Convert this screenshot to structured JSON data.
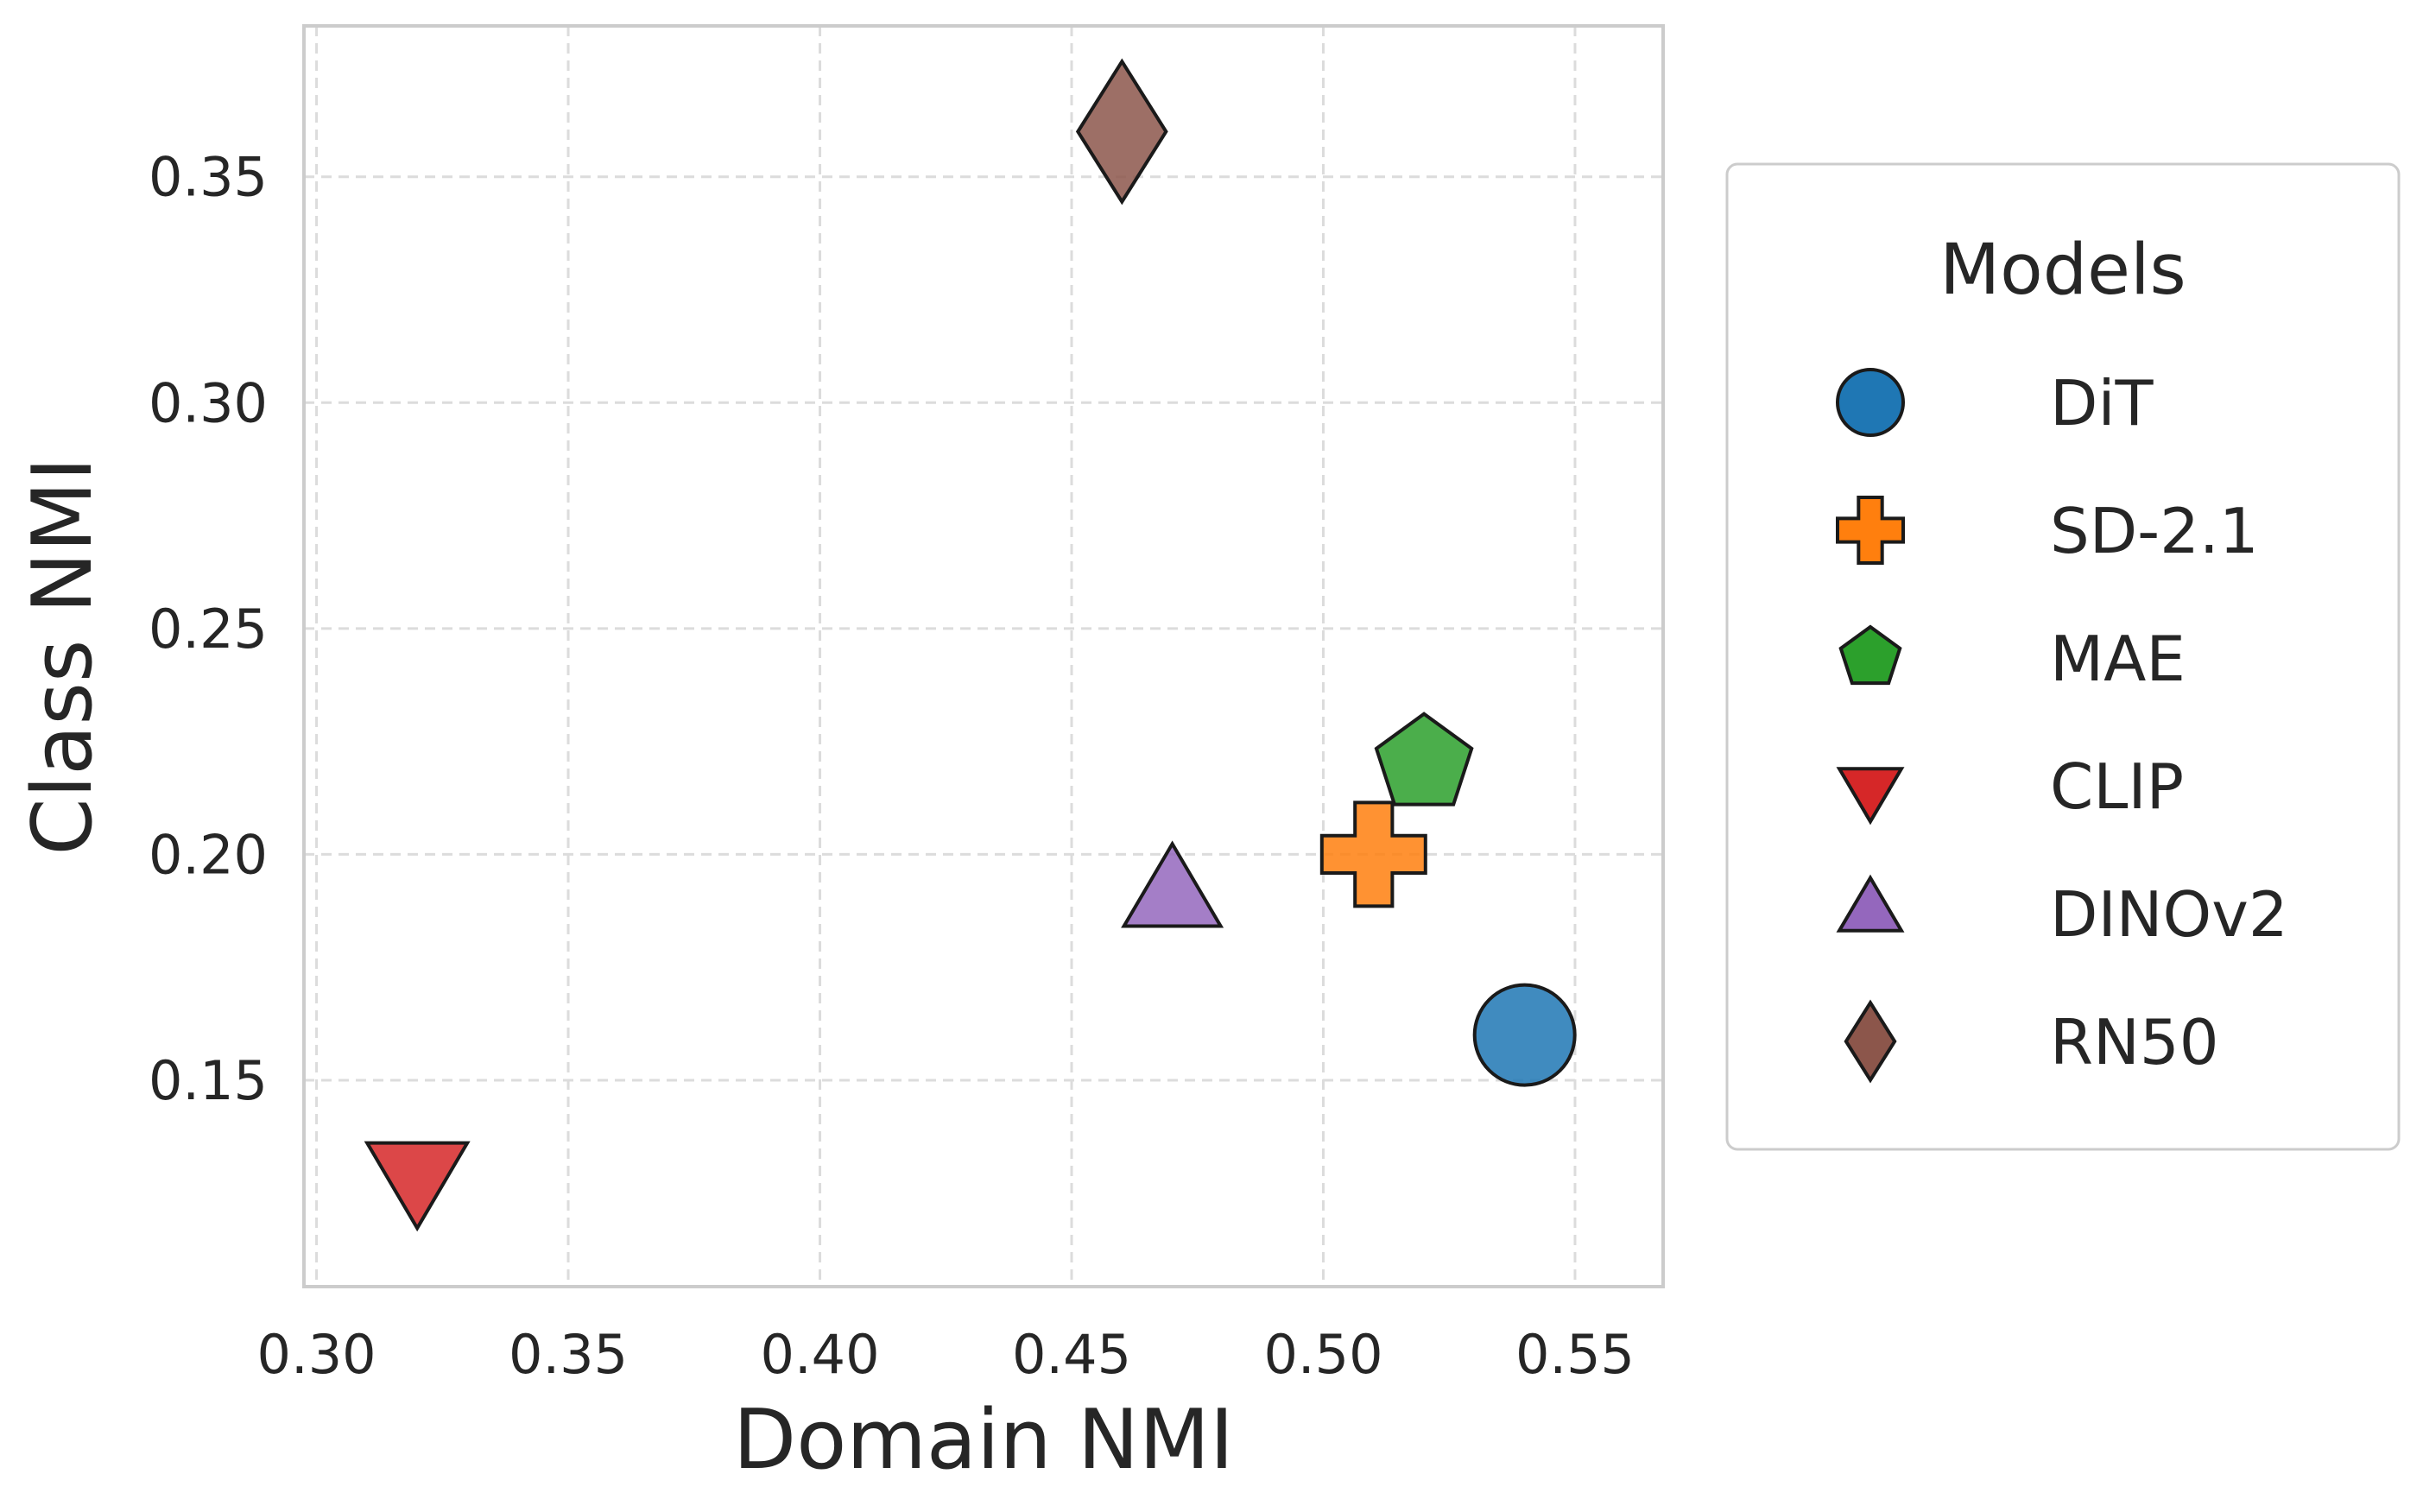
{
  "chart_data": {
    "type": "scatter",
    "xlabel": "Domain NMI",
    "ylabel": "Class NMI",
    "xlim": [
      0.2975,
      0.5675
    ],
    "ylim": [
      0.1043,
      0.3834
    ],
    "x_ticks": [
      "0.30",
      "0.35",
      "0.40",
      "0.45",
      "0.50",
      "0.55"
    ],
    "y_ticks": [
      "0.15",
      "0.20",
      "0.25",
      "0.30",
      "0.35"
    ],
    "x_tick_values": [
      0.3,
      0.35,
      0.4,
      0.45,
      0.5,
      0.55
    ],
    "y_tick_values": [
      0.15,
      0.2,
      0.25,
      0.3,
      0.35
    ],
    "grid": true,
    "grid_style": "dashed",
    "legend": {
      "title": "Models",
      "placement": "outside-right"
    },
    "series": [
      {
        "name": "DiT",
        "marker": "circle",
        "color": "#1f77b4",
        "x": 0.54,
        "y": 0.16
      },
      {
        "name": "SD-2.1",
        "marker": "plus",
        "color": "#ff7f0e",
        "x": 0.51,
        "y": 0.2
      },
      {
        "name": "MAE",
        "marker": "pentagon",
        "color": "#2ca02c",
        "x": 0.52,
        "y": 0.22
      },
      {
        "name": "CLIP",
        "marker": "triangle-down",
        "color": "#d62728",
        "x": 0.32,
        "y": 0.13
      },
      {
        "name": "DINOv2",
        "marker": "triangle-up",
        "color": "#9467bd",
        "x": 0.47,
        "y": 0.19
      },
      {
        "name": "RN50",
        "marker": "diamond",
        "color": "#8c564b",
        "x": 0.46,
        "y": 0.36
      }
    ]
  }
}
